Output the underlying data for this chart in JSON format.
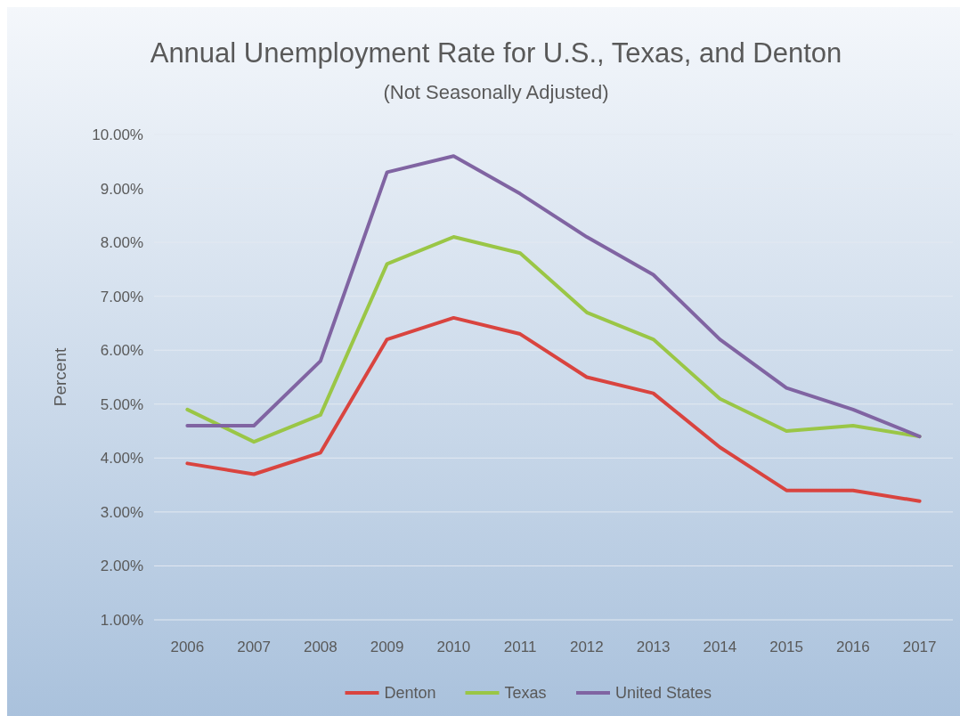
{
  "chart_data": {
    "type": "line",
    "title": "Annual Unemployment Rate for U.S., Texas, and Denton",
    "subtitle": "(Not Seasonally Adjusted)",
    "ylabel": "Percent",
    "categories": [
      "2006",
      "2007",
      "2008",
      "2009",
      "2010",
      "2011",
      "2012",
      "2013",
      "2014",
      "2015",
      "2016",
      "2017"
    ],
    "series": [
      {
        "name": "Denton",
        "color": "#d9443f",
        "values": [
          3.9,
          3.7,
          4.1,
          6.2,
          6.6,
          6.3,
          5.5,
          5.2,
          4.2,
          3.4,
          3.4,
          3.2
        ]
      },
      {
        "name": "Texas",
        "color": "#9ac646",
        "values": [
          4.9,
          4.3,
          4.8,
          7.6,
          8.1,
          7.8,
          6.7,
          6.2,
          5.1,
          4.5,
          4.6,
          4.4
        ]
      },
      {
        "name": "United States",
        "color": "#8064a2",
        "values": [
          4.6,
          4.6,
          5.8,
          9.3,
          9.6,
          8.9,
          8.1,
          7.4,
          6.2,
          5.3,
          4.9,
          4.4
        ]
      }
    ],
    "ylim": [
      1,
      10
    ],
    "yticks": [
      {
        "value": 1,
        "label": "1.00%"
      },
      {
        "value": 2,
        "label": "2.00%"
      },
      {
        "value": 3,
        "label": "3.00%"
      },
      {
        "value": 4,
        "label": "4.00%"
      },
      {
        "value": 5,
        "label": "5.00%"
      },
      {
        "value": 6,
        "label": "6.00%"
      },
      {
        "value": 7,
        "label": "7.00%"
      },
      {
        "value": 8,
        "label": "8.00%"
      },
      {
        "value": 9,
        "label": "9.00%"
      },
      {
        "value": 10,
        "label": "10.00%"
      }
    ],
    "grid": "y",
    "legend": "bottom",
    "marker": "none",
    "line_style": "solid"
  }
}
